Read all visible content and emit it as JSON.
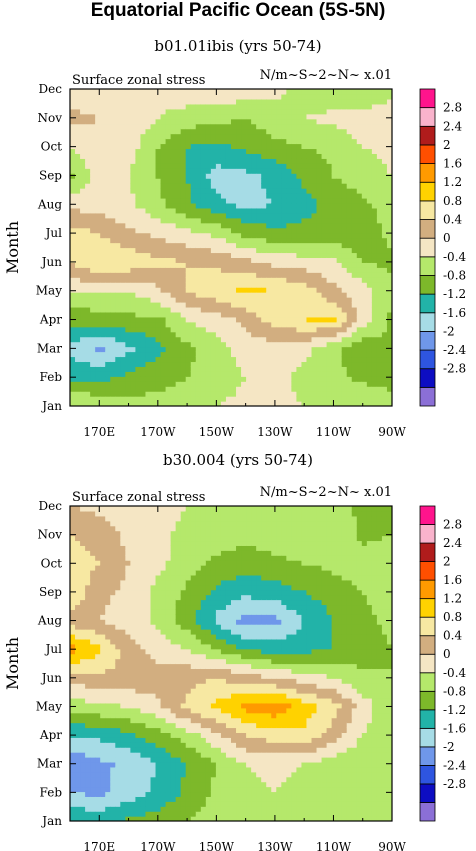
{
  "page_title": "Equatorial Pacific Ocean (5S-5N)",
  "colors": [
    "#8b6fd6",
    "#0d0dc2",
    "#2e55e0",
    "#6f97ea",
    "#a6dce6",
    "#22b3a8",
    "#7db82a",
    "#b5e86b",
    "#f5e6c4",
    "#d2ae80",
    "#f7e8a2",
    "#ffd200",
    "#ff9a00",
    "#ff4f00",
    "#b01c1c",
    "#f9b3cc",
    "#ff148c"
  ],
  "chart_data": [
    {
      "type": "heatmap",
      "title": "b01.01ibis (yrs 50-74)",
      "subtitle_left": "Surface zonal stress",
      "subtitle_right": "N/m~S~2~N~ x.01",
      "ylabel": "Month",
      "x_ticks": [
        "170E",
        "170W",
        "150W",
        "130W",
        "110W",
        "90W"
      ],
      "y_ticks": [
        "Jan",
        "Feb",
        "Mar",
        "Apr",
        "May",
        "Jun",
        "Jul",
        "Aug",
        "Sep",
        "Oct",
        "Nov",
        "Dec"
      ],
      "legend_labels": [
        "2.8",
        "2.4",
        "2",
        "1.6",
        "1.2",
        "0.8",
        "0.4",
        "0",
        "-0.4",
        "-0.8",
        "-1.2",
        "-1.6",
        "-2",
        "-2.4",
        "-2.8"
      ],
      "levels": [
        -2.8,
        -2.4,
        -2.0,
        -1.6,
        -1.2,
        -0.8,
        -0.4,
        0,
        0.4,
        0.8,
        1.2,
        1.6,
        2.0,
        2.4,
        2.8
      ],
      "x": [
        160,
        170,
        180,
        190,
        200,
        210,
        220,
        230,
        240,
        250,
        260,
        270
      ],
      "y": [
        "Jan",
        "Feb",
        "Mar",
        "Apr",
        "May",
        "Jun",
        "Jul",
        "Aug",
        "Sep",
        "Oct",
        "Nov",
        "Dec"
      ],
      "z": [
        [
          0.1,
          -0.1,
          -0.2,
          -0.3,
          -0.2,
          0.0,
          0.1,
          0.1,
          0.0,
          -0.1,
          0.0,
          -0.3
        ],
        [
          -0.9,
          -0.9,
          -0.7,
          -0.5,
          -0.4,
          -0.2,
          0.0,
          0.1,
          -0.1,
          -0.3,
          -0.5,
          -0.5
        ],
        [
          -1.3,
          -1.7,
          -1.3,
          -0.9,
          -0.5,
          -0.2,
          0.2,
          0.2,
          0.1,
          -0.3,
          -0.7,
          -0.5
        ],
        [
          -0.7,
          -0.6,
          -0.5,
          -0.5,
          0.0,
          0.2,
          0.5,
          1.0,
          1.2,
          1.3,
          0.2,
          -0.5
        ],
        [
          0.1,
          0.0,
          0.0,
          0.3,
          0.8,
          1.1,
          1.3,
          1.2,
          1.0,
          0.5,
          0.2,
          -0.3
        ],
        [
          0.8,
          1.2,
          1.1,
          0.9,
          0.8,
          0.7,
          0.5,
          0.3,
          0.2,
          0.1,
          -0.4,
          -0.5
        ],
        [
          1.0,
          0.8,
          0.5,
          0.3,
          0.1,
          -0.1,
          -0.5,
          -0.7,
          -0.7,
          -0.7,
          -0.6,
          -0.3
        ],
        [
          0.3,
          0.2,
          0.1,
          -0.3,
          -0.7,
          -1.1,
          -1.3,
          -1.2,
          -0.9,
          -0.7,
          -0.5,
          -0.2
        ],
        [
          -0.5,
          0.2,
          0.0,
          -0.4,
          -0.8,
          -1.4,
          -1.3,
          -1.1,
          -0.7,
          -0.4,
          -0.2,
          0.0
        ],
        [
          0.0,
          0.3,
          0.2,
          -0.4,
          -0.8,
          -0.9,
          -0.7,
          -0.5,
          -0.4,
          -0.3,
          0.0,
          0.1
        ],
        [
          0.5,
          0.4,
          0.3,
          0.0,
          -0.2,
          -0.3,
          -0.4,
          -0.2,
          0.0,
          0.1,
          0.2,
          0.3
        ],
        [
          0.2,
          0.0,
          0.0,
          0.1,
          0.3,
          0.4,
          0.2,
          0.1,
          -0.1,
          -0.3,
          -0.4,
          -0.2
        ]
      ]
    },
    {
      "type": "heatmap",
      "title": "b30.004 (yrs 50-74)",
      "subtitle_left": "Surface zonal stress",
      "subtitle_right": "N/m~S~2~N~ x.01",
      "ylabel": "Month",
      "x_ticks": [
        "170E",
        "170W",
        "150W",
        "130W",
        "110W",
        "90W"
      ],
      "y_ticks": [
        "Jan",
        "Feb",
        "Mar",
        "Apr",
        "May",
        "Jun",
        "Jul",
        "Aug",
        "Sep",
        "Oct",
        "Nov",
        "Dec"
      ],
      "legend_labels": [
        "2.8",
        "2.4",
        "2",
        "1.6",
        "1.2",
        "0.8",
        "0.4",
        "0",
        "-0.4",
        "-0.8",
        "-1.2",
        "-1.6",
        "-2",
        "-2.4",
        "-2.8"
      ],
      "levels": [
        -2.8,
        -2.4,
        -2.0,
        -1.6,
        -1.2,
        -0.8,
        -0.4,
        0,
        0.4,
        0.8,
        1.2,
        1.6,
        2.0,
        2.4,
        2.8
      ],
      "x": [
        160,
        170,
        180,
        190,
        200,
        210,
        220,
        230,
        240,
        250,
        260,
        270
      ],
      "y": [
        "Jan",
        "Feb",
        "Mar",
        "Apr",
        "May",
        "Jun",
        "Jul",
        "Aug",
        "Sep",
        "Oct",
        "Nov",
        "Dec"
      ],
      "z": [
        [
          -0.8,
          -0.9,
          -0.7,
          -0.6,
          -0.4,
          -0.2,
          0.0,
          0.0,
          -0.2,
          -0.4,
          -0.4,
          -0.3
        ],
        [
          -1.6,
          -1.7,
          -1.4,
          -1.1,
          -0.7,
          -0.3,
          -0.1,
          0.0,
          -0.1,
          -0.3,
          -0.4,
          -0.3
        ],
        [
          -1.9,
          -1.7,
          -1.5,
          -1.2,
          -0.8,
          -0.4,
          0.0,
          0.1,
          0.0,
          -0.2,
          -0.4,
          -0.4
        ],
        [
          -1.2,
          -1.1,
          -0.9,
          -0.6,
          -0.2,
          0.3,
          0.8,
          1.0,
          1.1,
          0.6,
          0.0,
          -0.3
        ],
        [
          -0.2,
          -0.1,
          0.0,
          0.3,
          0.9,
          1.3,
          1.7,
          1.9,
          1.4,
          1.0,
          0.2,
          -0.3
        ],
        [
          0.5,
          0.7,
          0.7,
          0.6,
          0.7,
          0.8,
          0.6,
          0.4,
          0.2,
          0.0,
          -0.3,
          -0.4
        ],
        [
          1.8,
          1.3,
          0.6,
          0.2,
          0.0,
          -0.4,
          -0.8,
          -1.0,
          -0.9,
          -0.8,
          -0.6,
          -0.4
        ],
        [
          0.6,
          0.4,
          0.2,
          -0.1,
          -0.6,
          -1.3,
          -1.8,
          -1.7,
          -1.2,
          -0.8,
          -0.5,
          -0.3
        ],
        [
          1.2,
          0.5,
          0.3,
          -0.1,
          -0.5,
          -0.9,
          -1.1,
          -1.0,
          -0.8,
          -0.6,
          -0.4,
          -0.2
        ],
        [
          1.0,
          0.8,
          0.4,
          0.1,
          -0.2,
          -0.5,
          -0.6,
          -0.5,
          -0.4,
          -0.3,
          -0.2,
          -0.1
        ],
        [
          0.8,
          0.6,
          0.3,
          0.1,
          -0.1,
          -0.2,
          -0.3,
          -0.2,
          -0.1,
          0.0,
          -0.5,
          -0.4
        ],
        [
          0.4,
          0.3,
          0.2,
          0.1,
          0.0,
          -0.1,
          -0.2,
          -0.2,
          -0.1,
          0.0,
          -0.6,
          -0.5
        ]
      ]
    }
  ]
}
